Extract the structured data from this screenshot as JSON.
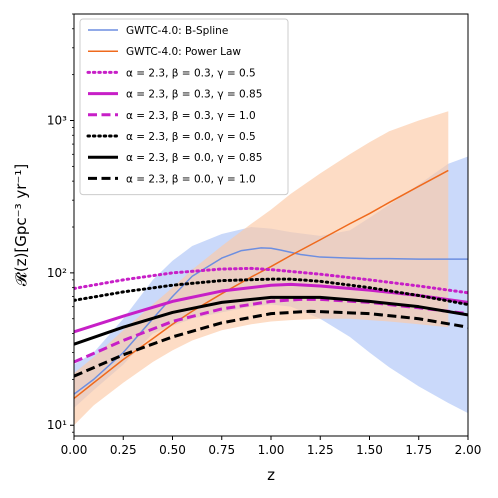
{
  "chart_data": {
    "type": "line",
    "xlabel": "z",
    "ylabel": "𝓡(z)[Gpc⁻³ yr⁻¹]",
    "xlim": [
      0,
      2
    ],
    "ylim": [
      8.5,
      5000
    ],
    "yscale": "log",
    "grid": false,
    "legend_position": "top-left",
    "x_ticks": [
      0,
      0.25,
      0.5,
      0.75,
      1.0,
      1.25,
      1.5,
      1.75,
      2.0
    ],
    "x_tick_labels": [
      "0.00",
      "0.25",
      "0.50",
      "0.75",
      "1.00",
      "1.25",
      "1.50",
      "1.75",
      "2.00"
    ],
    "y_ticks": [
      10,
      100,
      1000
    ],
    "y_tick_labels": [
      "10¹",
      "10²",
      "10³"
    ],
    "bands": [
      {
        "series": "GWTC-4.0: B-Spline",
        "color": "#adc4f8",
        "x": [
          0,
          0.1,
          0.25,
          0.4,
          0.5,
          0.6,
          0.75,
          0.9,
          1.0,
          1.1,
          1.25,
          1.4,
          1.5,
          1.6,
          1.75,
          1.9,
          2.0
        ],
        "upper": [
          25,
          30,
          50,
          90,
          120,
          150,
          180,
          200,
          195,
          185,
          175,
          190,
          230,
          280,
          380,
          520,
          580
        ],
        "lower": [
          13,
          17,
          25,
          40,
          45,
          50,
          55,
          60,
          62,
          60,
          50,
          38,
          30,
          24,
          18,
          14,
          12
        ]
      },
      {
        "series": "GWTC-4.0: Power Law",
        "color": "#fcc9a6",
        "x": [
          0,
          0.1,
          0.25,
          0.4,
          0.5,
          0.6,
          0.75,
          0.9,
          1.0,
          1.1,
          1.25,
          1.4,
          1.5,
          1.6,
          1.75,
          1.9
        ],
        "upper": [
          22,
          28,
          42,
          62,
          80,
          105,
          150,
          210,
          260,
          330,
          450,
          600,
          720,
          850,
          1000,
          1150
        ],
        "lower": [
          10,
          13.5,
          19,
          26,
          31,
          36,
          42,
          46,
          48,
          49,
          50,
          50,
          49,
          48,
          46,
          44
        ]
      }
    ],
    "series": [
      {
        "name": "GWTC-4.0: B-Spline",
        "color": "#6d8ee0",
        "width": 1.5,
        "dash": "solid",
        "x": [
          0,
          0.1,
          0.25,
          0.4,
          0.5,
          0.6,
          0.75,
          0.85,
          0.95,
          1.0,
          1.05,
          1.15,
          1.25,
          1.4,
          1.5,
          1.6,
          1.75,
          1.9,
          2.0
        ],
        "y": [
          16,
          20,
          30,
          50,
          70,
          95,
          125,
          140,
          146,
          145,
          141,
          132,
          127,
          125,
          124,
          124,
          123,
          123,
          123
        ]
      },
      {
        "name": "GWTC-4.0: Power Law",
        "color": "#ef6a1d",
        "width": 1.5,
        "dash": "solid",
        "x": [
          0,
          0.1,
          0.25,
          0.4,
          0.5,
          0.6,
          0.75,
          0.9,
          1.0,
          1.1,
          1.25,
          1.4,
          1.5,
          1.6,
          1.75,
          1.9
        ],
        "y": [
          15,
          19,
          27,
          37,
          46,
          56,
          73,
          94,
          110,
          130,
          165,
          210,
          245,
          290,
          370,
          470
        ]
      },
      {
        "name": "α = 2.3, β = 0.3, γ = 0.5",
        "color": "#c71fc7",
        "width": 3,
        "dash": "dotted",
        "x": [
          0,
          0.25,
          0.5,
          0.75,
          0.9,
          1.0,
          1.25,
          1.5,
          1.75,
          2.0
        ],
        "y": [
          79,
          90,
          100,
          106,
          107,
          105,
          98,
          90,
          82,
          74
        ]
      },
      {
        "name": "α = 2.3, β = 0.3, γ = 0.85",
        "color": "#c71fc7",
        "width": 3,
        "dash": "solid",
        "x": [
          0,
          0.25,
          0.5,
          0.75,
          1.0,
          1.1,
          1.25,
          1.5,
          1.75,
          2.0
        ],
        "y": [
          41,
          52,
          65,
          76,
          83,
          84,
          82,
          77,
          71,
          64
        ]
      },
      {
        "name": "α = 2.3, β = 0.3, γ = 1.0",
        "color": "#c71fc7",
        "width": 3,
        "dash": "dashed",
        "x": [
          0,
          0.25,
          0.5,
          0.75,
          1.0,
          1.15,
          1.25,
          1.5,
          1.75,
          2.0
        ],
        "y": [
          26,
          36,
          48,
          58,
          65,
          67,
          67,
          64,
          59,
          54
        ]
      },
      {
        "name": "α = 2.3, β = 0.0, γ = 0.5",
        "color": "#000000",
        "width": 3,
        "dash": "dotted",
        "x": [
          0,
          0.25,
          0.5,
          0.75,
          1.0,
          1.1,
          1.25,
          1.5,
          1.75,
          2.0
        ],
        "y": [
          66,
          75,
          83,
          89,
          91,
          91,
          88,
          80,
          71,
          62
        ]
      },
      {
        "name": "α = 2.3, β = 0.0, γ = 0.85",
        "color": "#000000",
        "width": 3,
        "dash": "solid",
        "x": [
          0,
          0.25,
          0.5,
          0.75,
          1.0,
          1.25,
          1.5,
          1.75,
          2.0
        ],
        "y": [
          34,
          44,
          55,
          64,
          69,
          69,
          65,
          60,
          53
        ]
      },
      {
        "name": "α = 2.3, β = 0.0, γ = 1.0",
        "color": "#000000",
        "width": 3,
        "dash": "dashed",
        "x": [
          0,
          0.25,
          0.5,
          0.75,
          1.0,
          1.2,
          1.5,
          1.75,
          2.0
        ],
        "y": [
          21,
          29,
          38,
          47,
          54,
          56,
          54,
          50,
          44
        ]
      }
    ]
  }
}
